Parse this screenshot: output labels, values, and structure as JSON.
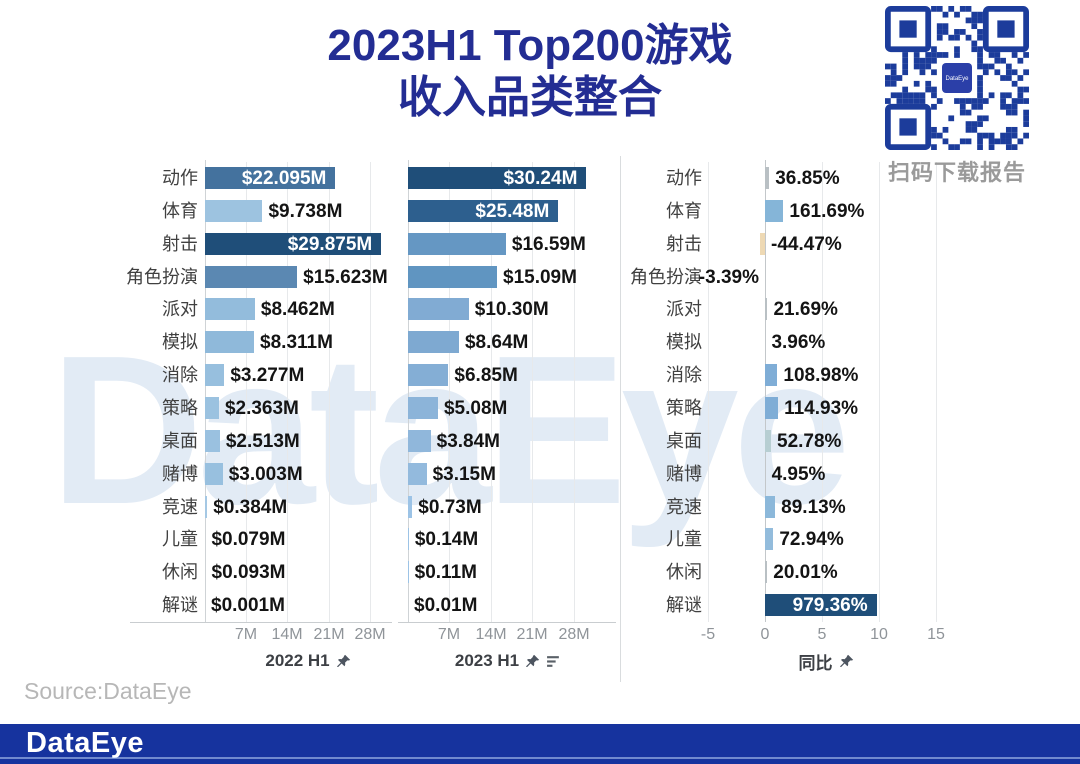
{
  "title": {
    "line1": "2023H1 Top200游戏",
    "line2": "收入品类整合"
  },
  "watermark": {
    "text": "DataEye"
  },
  "qr": {
    "caption": "扫码下载报告",
    "center_logo_text": "DataEye",
    "color": "#1c3c9b"
  },
  "source": {
    "text": "Source:DataEye"
  },
  "footer": {
    "logo_text": "DataEye",
    "bar_color": "#16339e"
  },
  "colors": {
    "accent_title": "#232d93",
    "dark_bar": "#1f4e79",
    "negative_bar": "#eed9b4",
    "neutral_sliver": "#b9c0c4"
  },
  "icons": {
    "panel_2022": [
      "pushpin"
    ],
    "panel_2023": [
      "pushpin",
      "sort-descending"
    ],
    "panel_yoy": [
      "pushpin"
    ],
    "qr": [
      "qr-code"
    ]
  },
  "chart_data": [
    {
      "type": "bar",
      "title": "2022 H1",
      "orientation": "horizontal",
      "unit": "$M",
      "categories": [
        "动作",
        "体育",
        "射击",
        "角色扮演",
        "派对",
        "模拟",
        "消除",
        "策略",
        "桌面",
        "赌博",
        "竞速",
        "儿童",
        "休闲",
        "解谜"
      ],
      "values": [
        22.095,
        9.738,
        29.875,
        15.623,
        8.462,
        8.311,
        3.277,
        2.363,
        2.513,
        3.003,
        0.384,
        0.079,
        0.093,
        0.001
      ],
      "labels": [
        "$22.095M",
        "$9.738M",
        "$29.875M",
        "$15.623M",
        "$8.462M",
        "$8.311M",
        "$3.277M",
        "$2.363M",
        "$2.513M",
        "$3.003M",
        "$0.384M",
        "$0.079M",
        "$0.093M",
        "$0.001M"
      ],
      "colors": [
        "#44729e",
        "#9dc3e0",
        "#1f4e79",
        "#5b88b2",
        "#93bcdc",
        "#8fb9da",
        "#97bfde",
        "#9bc2e0",
        "#9ac1e0",
        "#98c0df",
        "#a5c8e4",
        "#a5c8e4",
        "#a5c8e4",
        "#a5c8e4"
      ],
      "label_inside": [
        true,
        false,
        true,
        false,
        false,
        false,
        false,
        false,
        false,
        false,
        false,
        false,
        false,
        false
      ],
      "x_ticks": [
        "7M",
        "14M",
        "21M",
        "28M"
      ],
      "xlim": [
        0,
        31.6
      ],
      "grid": true,
      "legend": "none"
    },
    {
      "type": "bar",
      "title": "2023 H1",
      "orientation": "horizontal",
      "unit": "$M",
      "categories": [
        "动作",
        "体育",
        "射击",
        "角色扮演",
        "派对",
        "模拟",
        "消除",
        "策略",
        "桌面",
        "赌博",
        "竞速",
        "儿童",
        "休闲",
        "解谜"
      ],
      "values": [
        30.24,
        25.48,
        16.59,
        15.09,
        10.3,
        8.64,
        6.85,
        5.08,
        3.84,
        3.15,
        0.73,
        0.14,
        0.11,
        0.01
      ],
      "labels": [
        "$30.24M",
        "$25.48M",
        "$16.59M",
        "$15.09M",
        "$10.30M",
        "$8.64M",
        "$6.85M",
        "$5.08M",
        "$3.84M",
        "$3.15M",
        "$0.73M",
        "$0.14M",
        "$0.11M",
        "$0.01M"
      ],
      "colors": [
        "#1f4e79",
        "#2d5f8e",
        "#6597c3",
        "#6095c1",
        "#81abd3",
        "#7ea9d1",
        "#84aed5",
        "#8cb4d9",
        "#90b7db",
        "#93badd",
        "#9cc3e6",
        "#9cc3e6",
        "#9cc3e6",
        "#9cc3e6"
      ],
      "label_inside": [
        true,
        true,
        false,
        false,
        false,
        false,
        false,
        false,
        false,
        false,
        false,
        false,
        false,
        false
      ],
      "x_ticks": [
        "7M",
        "14M",
        "21M",
        "28M"
      ],
      "xlim": [
        0,
        31.6
      ],
      "grid": true,
      "legend": "none"
    },
    {
      "type": "bar",
      "title": "同比",
      "orientation": "horizontal",
      "unit": "%",
      "axis_note": "bar length = percent/100 on -5..15 axis",
      "categories": [
        "动作",
        "体育",
        "射击",
        "角色扮演",
        "派对",
        "模拟",
        "消除",
        "策略",
        "桌面",
        "赌博",
        "竞速",
        "儿童",
        "休闲",
        "解谜"
      ],
      "values": [
        36.85,
        161.69,
        -44.47,
        -3.39,
        21.69,
        3.96,
        108.98,
        114.93,
        52.78,
        4.95,
        89.13,
        72.94,
        20.01,
        979.36
      ],
      "labels": [
        "36.85%",
        "161.69%",
        "-44.47%",
        "-3.39%",
        "21.69%",
        "3.96%",
        "108.98%",
        "114.93%",
        "52.78%",
        "4.95%",
        "89.13%",
        "72.94%",
        "20.01%",
        "979.36%"
      ],
      "colors": [
        "#b9c0c4",
        "#85b5d8",
        "#eed9b4",
        "#eed9b4",
        "#b9c0c4",
        "#b9c0c4",
        "#7fadd6",
        "#7fadd6",
        "#b7ced2",
        "#b9c0c4",
        "#8cb8da",
        "#93bcdc",
        "#b9c0c4",
        "#1f4e79"
      ],
      "label_inside": [
        false,
        false,
        false,
        false,
        false,
        false,
        false,
        false,
        false,
        false,
        false,
        false,
        false,
        true
      ],
      "label_side": [
        "right",
        "right",
        "right",
        "left",
        "right",
        "right",
        "right",
        "right",
        "right",
        "right",
        "right",
        "right",
        "right",
        "right"
      ],
      "x_ticks": [
        "-5",
        "0",
        "5",
        "10",
        "15"
      ],
      "xlim": [
        -5,
        15
      ],
      "grid": true,
      "legend": "none"
    }
  ]
}
